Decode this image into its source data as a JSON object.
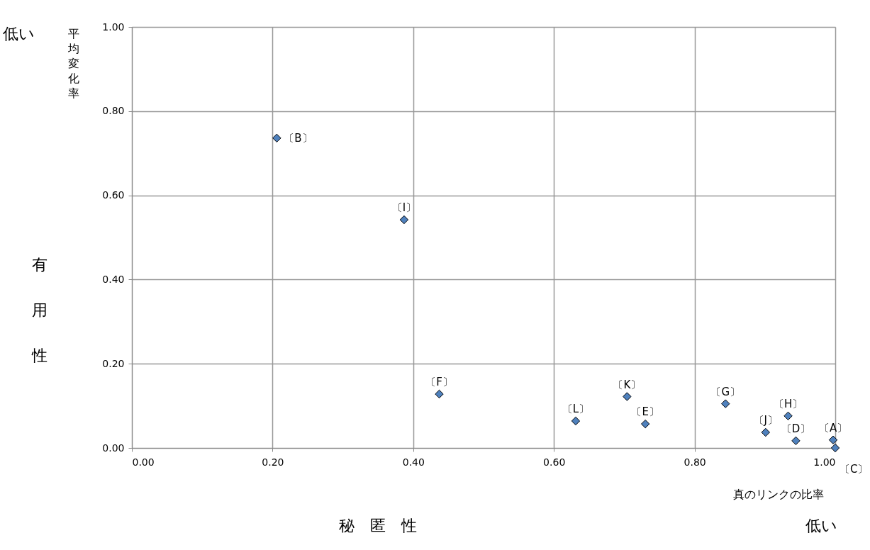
{
  "chart_data": {
    "type": "scatter",
    "xlabel": "真のリンクの比率",
    "ylabel": "平均変化率",
    "series": [
      {
        "color": "#4f81bd",
        "x": [
          0.206,
          0.387,
          0.437,
          0.631,
          0.704,
          0.73,
          0.844,
          0.901,
          0.933,
          0.944,
          0.997,
          1.0
        ],
        "values": [
          0.736,
          0.542,
          0.128,
          0.064,
          0.122,
          0.057,
          0.105,
          0.037,
          0.076,
          0.017,
          0.019,
          0.0
        ]
      }
    ],
    "annotations": [
      {
        "text": "〔B〕",
        "x": 0.206,
        "y": 0.736
      },
      {
        "text": "〔I〕",
        "x": 0.387,
        "y": 0.542
      },
      {
        "text": "〔F〕",
        "x": 0.437,
        "y": 0.128
      },
      {
        "text": "〔L〕",
        "x": 0.631,
        "y": 0.064
      },
      {
        "text": "〔K〕",
        "x": 0.704,
        "y": 0.122
      },
      {
        "text": "〔E〕",
        "x": 0.73,
        "y": 0.057
      },
      {
        "text": "〔G〕",
        "x": 0.844,
        "y": 0.105
      },
      {
        "text": "〔J〕",
        "x": 0.901,
        "y": 0.037
      },
      {
        "text": "〔H〕",
        "x": 0.933,
        "y": 0.076
      },
      {
        "text": "〔D〕",
        "x": 0.944,
        "y": 0.017
      },
      {
        "text": "〔A〕",
        "x": 0.997,
        "y": 0.019
      },
      {
        "text": "〔C〕",
        "x": 1.0,
        "y": 0.0
      },
      "低い",
      "有用性",
      "低い",
      "秘　匿　性"
    ],
    "xlim": [
      0,
      1
    ],
    "ylim": [
      0,
      1
    ],
    "xticks": [
      {
        "value": 0,
        "label": "0.00"
      },
      {
        "value": 0.2,
        "label": "0.20"
      },
      {
        "value": 0.4,
        "label": "0.40"
      },
      {
        "value": 0.6,
        "label": "0.60"
      },
      {
        "value": 0.8,
        "label": "0.80"
      },
      {
        "value": 1,
        "label": "1.00"
      }
    ],
    "yticks": [
      {
        "value": 0,
        "label": "0.00"
      },
      {
        "value": 0.2,
        "label": "0.20"
      },
      {
        "value": 0.4,
        "label": "0.40"
      },
      {
        "value": 0.6,
        "label": "0.60"
      },
      {
        "value": 0.8,
        "label": "0.80"
      },
      {
        "value": 1,
        "label": "1.00"
      }
    ],
    "grid": true,
    "marker": "diamond"
  }
}
